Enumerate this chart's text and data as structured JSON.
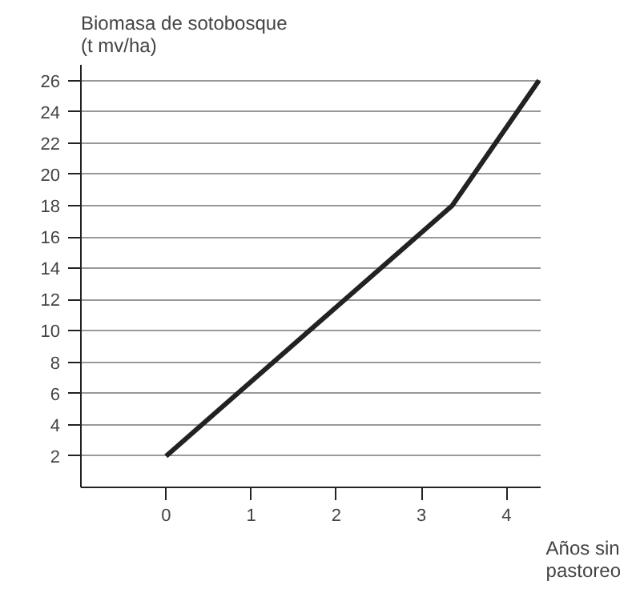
{
  "chart_data": {
    "type": "line",
    "ylabel": "Biomasa de sotobosque\n(t mv/ha)",
    "xlabel": "Años sin\npastoreo",
    "x": [
      0,
      3.36,
      4.38
    ],
    "series": [
      {
        "color": "#222222",
        "values": [
          2,
          18,
          26
        ]
      }
    ],
    "xlim": [
      -1,
      4.4
    ],
    "ylim": [
      0,
      27
    ],
    "xticks": [
      0,
      1,
      2,
      3,
      4
    ],
    "yticks": [
      2,
      4,
      6,
      8,
      10,
      12,
      14,
      16,
      18,
      20,
      22,
      24,
      26
    ],
    "grid": "y",
    "marker": "none",
    "line_style": "solid"
  }
}
